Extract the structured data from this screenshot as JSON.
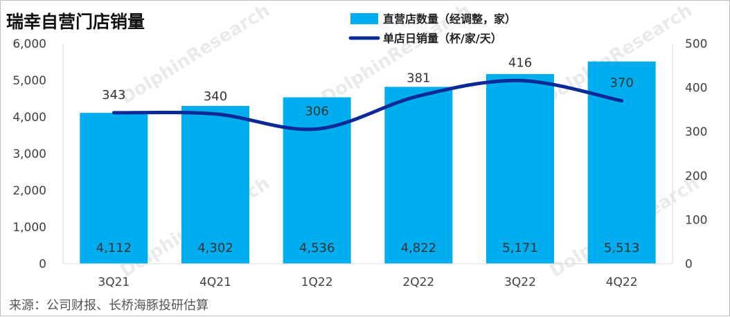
{
  "chart_data": {
    "type": "bar+line",
    "title": "瑞幸自营门店销量",
    "categories": [
      "3Q21",
      "4Q21",
      "1Q22",
      "2Q22",
      "3Q22",
      "4Q22"
    ],
    "series": [
      {
        "name": "直营店数量（经调整，家）",
        "type": "bar",
        "axis": "left",
        "color": "#00aeef",
        "values": [
          4112,
          4302,
          4536,
          4822,
          5171,
          5513
        ],
        "labels": [
          "4,112",
          "4,302",
          "4,536",
          "4,822",
          "5,171",
          "5,513"
        ]
      },
      {
        "name": "单店日销量（杯/家/天）",
        "type": "line",
        "axis": "right",
        "color": "#0b2a97",
        "values": [
          343,
          340,
          306,
          381,
          416,
          370
        ],
        "labels": [
          "343",
          "340",
          "306",
          "381",
          "416",
          "370"
        ]
      }
    ],
    "y_left": {
      "min": 0,
      "max": 6000,
      "ticks": [
        "0",
        "1,000",
        "2,000",
        "3,000",
        "4,000",
        "5,000",
        "6,000"
      ]
    },
    "y_right": {
      "min": 0,
      "max": 500,
      "ticks": [
        "0",
        "100",
        "200",
        "300",
        "400",
        "500"
      ]
    },
    "legend_position": "top-center",
    "grid": false
  },
  "source": "来源：公司财报、长桥海豚投研估算",
  "watermark": {
    "text": "DolphinResearch"
  }
}
